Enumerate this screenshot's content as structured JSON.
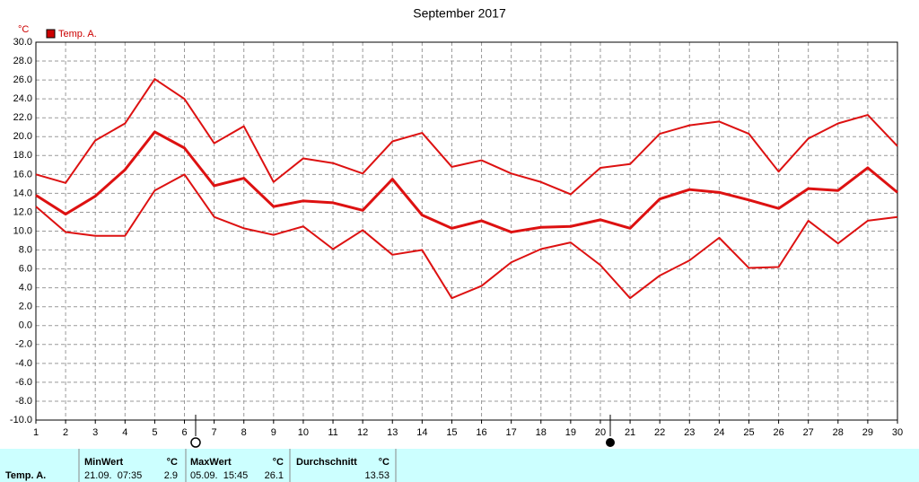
{
  "chart_data": {
    "type": "line",
    "title": "September 2017",
    "y_unit": "°C",
    "legend": "Temp. A.",
    "legend_color": "#cc0000",
    "x": [
      1,
      2,
      3,
      4,
      5,
      6,
      7,
      8,
      9,
      10,
      11,
      12,
      13,
      14,
      15,
      16,
      17,
      18,
      19,
      20,
      21,
      22,
      23,
      24,
      25,
      26,
      27,
      28,
      29,
      30
    ],
    "series": [
      {
        "color": "#dd1111",
        "width": 2,
        "values": [
          16.0,
          15.1,
          19.6,
          21.4,
          26.1,
          24.0,
          19.3,
          21.1,
          15.2,
          17.7,
          17.2,
          16.1,
          19.5,
          20.4,
          16.8,
          17.5,
          16.1,
          15.2,
          13.9,
          16.7,
          17.1,
          20.3,
          21.2,
          21.6,
          20.3,
          16.3,
          19.8,
          21.4,
          22.3,
          19.0
        ]
      },
      {
        "color": "#dd1111",
        "width": 3,
        "values": [
          13.8,
          11.8,
          13.7,
          16.5,
          20.5,
          18.8,
          14.8,
          15.6,
          12.6,
          13.2,
          13.0,
          12.2,
          15.5,
          11.7,
          10.3,
          11.1,
          9.9,
          10.4,
          10.5,
          11.2,
          10.3,
          13.4,
          14.4,
          14.1,
          13.3,
          12.4,
          14.5,
          14.3,
          16.7,
          14.1
        ]
      },
      {
        "color": "#dd1111",
        "width": 2,
        "values": [
          12.6,
          9.9,
          9.5,
          9.5,
          14.3,
          16.0,
          11.5,
          10.3,
          9.6,
          10.5,
          8.1,
          10.1,
          7.5,
          8.0,
          2.9,
          4.2,
          6.7,
          8.1,
          8.8,
          6.4,
          2.9,
          5.3,
          6.9,
          9.3,
          6.1,
          6.2,
          11.1,
          8.7,
          11.1,
          11.5
        ]
      }
    ],
    "xlim": [
      1,
      30
    ],
    "xticks": [
      1,
      2,
      3,
      4,
      5,
      6,
      7,
      8,
      9,
      10,
      11,
      12,
      13,
      14,
      15,
      16,
      17,
      18,
      19,
      20,
      21,
      22,
      23,
      24,
      25,
      26,
      27,
      28,
      29,
      30
    ],
    "ylim": [
      -10,
      30
    ],
    "yticks": [
      {
        "value": -10,
        "label": "-10.0"
      },
      {
        "value": -8,
        "label": "-8.0"
      },
      {
        "value": -6,
        "label": "-6.0"
      },
      {
        "value": -4,
        "label": "-4.0"
      },
      {
        "value": -2,
        "label": "-2.0"
      },
      {
        "value": 0,
        "label": "0.0"
      },
      {
        "value": 2,
        "label": "2.0"
      },
      {
        "value": 4,
        "label": "4.0"
      },
      {
        "value": 6,
        "label": "6.0"
      },
      {
        "value": 8,
        "label": "8.0"
      },
      {
        "value": 10,
        "label": "10.0"
      },
      {
        "value": 12,
        "label": "12.0"
      },
      {
        "value": 14,
        "label": "14.0"
      },
      {
        "value": 16,
        "label": "16.0"
      },
      {
        "value": 18,
        "label": "18.0"
      },
      {
        "value": 20,
        "label": "20.0"
      },
      {
        "value": 22,
        "label": "22.0"
      },
      {
        "value": 24,
        "label": "24.0"
      },
      {
        "value": 26,
        "label": "26.0"
      },
      {
        "value": 28,
        "label": "28.0"
      },
      {
        "value": 30,
        "label": "30.0"
      }
    ],
    "grid": true
  },
  "stats": {
    "row_label": "Temp. A.",
    "min": {
      "title": "MinWert",
      "unit": "°C",
      "time": "21.09.  07:35",
      "value": "2.9"
    },
    "max": {
      "title": "MaxWert",
      "unit": "°C",
      "time": "05.09.  15:45",
      "value": "26.1"
    },
    "avg": {
      "title": "Durchschnitt",
      "unit": "°C",
      "value": "13.53"
    }
  }
}
